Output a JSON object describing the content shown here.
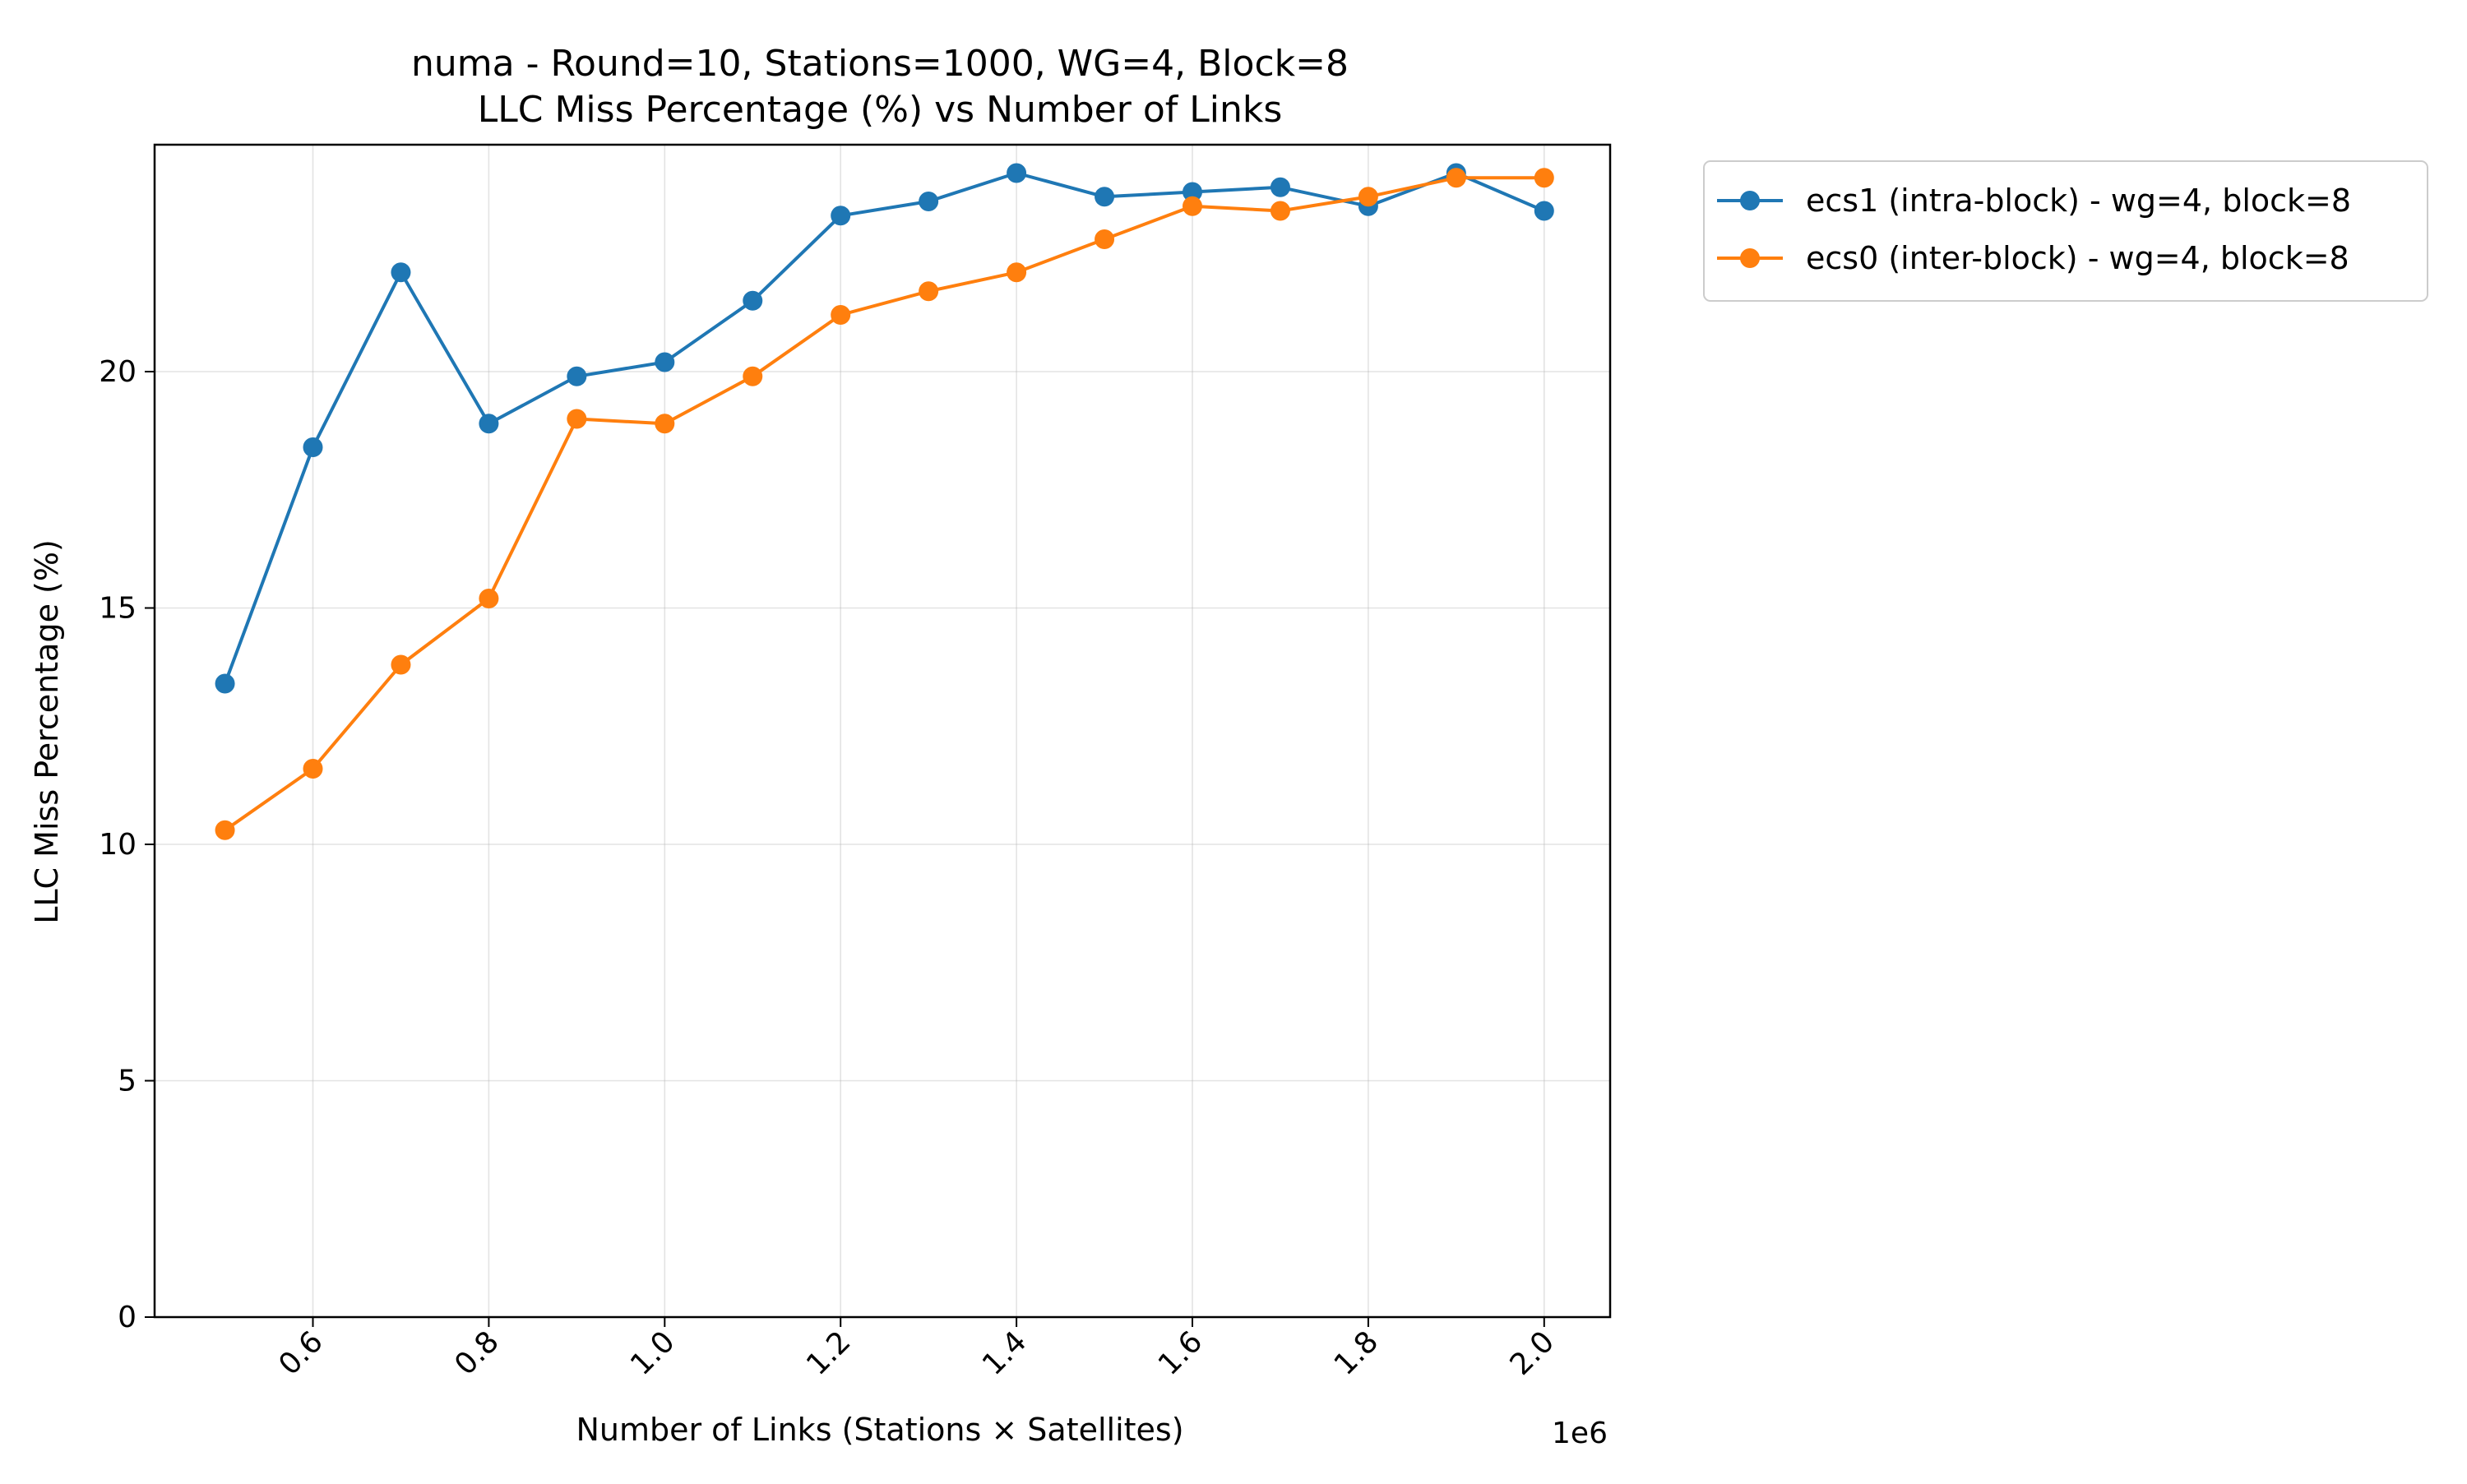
{
  "chart_data": {
    "type": "line",
    "title": "numa - Round=10, Stations=1000, WG=4, Block=8",
    "subtitle": "LLC Miss Percentage (%) vs Number of Links",
    "xlabel": "Number of Links (Stations × Satellites)",
    "ylabel": "LLC Miss Percentage (%)",
    "x_offset_label": "1e6",
    "x_scale": 1000000,
    "xlim": [
      420000,
      2075000
    ],
    "ylim": [
      0,
      24.8
    ],
    "xticks": [
      600000,
      800000,
      1000000,
      1200000,
      1400000,
      1600000,
      1800000,
      2000000
    ],
    "xtick_labels": [
      "0.6",
      "0.8",
      "1.0",
      "1.2",
      "1.4",
      "1.6",
      "1.8",
      "2.0"
    ],
    "yticks": [
      0,
      5,
      10,
      15,
      20
    ],
    "ytick_labels": [
      "0",
      "5",
      "10",
      "15",
      "20"
    ],
    "grid": true,
    "legend_position": "outside upper right",
    "x": [
      500000,
      600000,
      700000,
      800000,
      900000,
      1000000,
      1100000,
      1200000,
      1300000,
      1400000,
      1500000,
      1600000,
      1700000,
      1800000,
      1900000,
      2000000
    ],
    "series": [
      {
        "name": "ecs1 (intra-block) - wg=4, block=8",
        "color": "#1f77b4",
        "values": [
          13.4,
          18.4,
          22.1,
          18.9,
          19.9,
          20.2,
          21.5,
          23.3,
          23.6,
          24.2,
          23.7,
          23.8,
          23.9,
          23.5,
          24.2,
          23.4
        ]
      },
      {
        "name": "ecs0 (inter-block) - wg=4, block=8",
        "color": "#ff7f0e",
        "values": [
          10.3,
          11.6,
          13.8,
          15.2,
          19.0,
          18.9,
          19.9,
          21.2,
          21.7,
          22.1,
          22.8,
          23.5,
          23.4,
          23.7,
          24.1,
          24.1
        ]
      }
    ]
  }
}
